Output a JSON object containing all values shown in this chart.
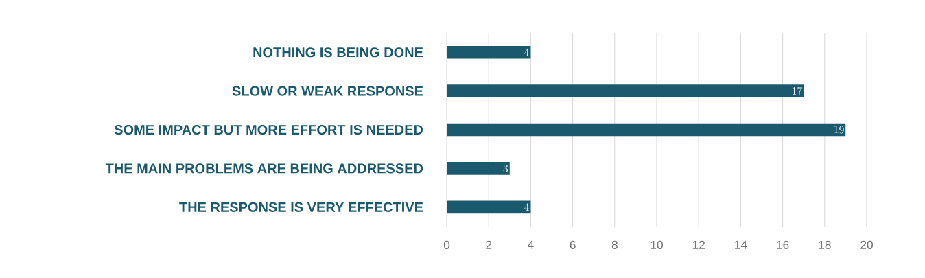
{
  "chart_data": {
    "type": "bar",
    "orientation": "horizontal",
    "categories": [
      "NOTHING IS BEING DONE",
      "SLOW OR WEAK RESPONSE",
      "SOME IMPACT BUT MORE EFFORT IS NEEDED",
      "THE MAIN PROBLEMS ARE BEING ADDRESSED",
      "THE RESPONSE IS VERY EFFECTIVE"
    ],
    "values": [
      4,
      17,
      19,
      3,
      4
    ],
    "color": "#1b5a6e",
    "xlim": [
      0,
      20
    ],
    "xticks": [
      0,
      2,
      4,
      6,
      8,
      10,
      12,
      14,
      16,
      18,
      20
    ],
    "grid": "x",
    "data_labels": true
  }
}
